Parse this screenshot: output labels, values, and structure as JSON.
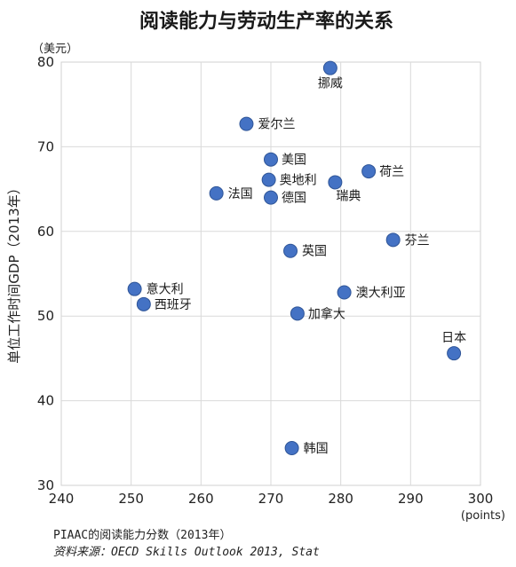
{
  "chart_data": {
    "type": "scatter",
    "title": "阅读能力与劳动生产率的关系",
    "ylabel": "单位工作时间GDP（2013年）",
    "y_unit": "（美元）",
    "x_unit": "(points)",
    "xlim": [
      240,
      300
    ],
    "ylim": [
      30,
      80
    ],
    "x_ticks": [
      240,
      250,
      260,
      270,
      280,
      290,
      300
    ],
    "y_ticks": [
      30,
      40,
      50,
      60,
      70,
      80
    ],
    "grid": true,
    "point_color": "#4472c4",
    "points": [
      {
        "label": "挪威",
        "x": 278.5,
        "y": 79.3
      },
      {
        "label": "爱尔兰",
        "x": 266.5,
        "y": 72.7
      },
      {
        "label": "美国",
        "x": 270.0,
        "y": 68.5
      },
      {
        "label": "荷兰",
        "x": 284.0,
        "y": 67.1
      },
      {
        "label": "奥地利",
        "x": 269.7,
        "y": 66.1
      },
      {
        "label": "瑞典",
        "x": 279.2,
        "y": 65.8
      },
      {
        "label": "法国",
        "x": 262.2,
        "y": 64.5
      },
      {
        "label": "德国",
        "x": 270.0,
        "y": 64.0
      },
      {
        "label": "芬兰",
        "x": 287.5,
        "y": 59.0
      },
      {
        "label": "英国",
        "x": 272.8,
        "y": 57.7
      },
      {
        "label": "意大利",
        "x": 250.5,
        "y": 53.2
      },
      {
        "label": "澳大利亚",
        "x": 280.5,
        "y": 52.8
      },
      {
        "label": "西班牙",
        "x": 251.8,
        "y": 51.4
      },
      {
        "label": "加拿大",
        "x": 273.8,
        "y": 50.3
      },
      {
        "label": "日本",
        "x": 296.2,
        "y": 45.6
      },
      {
        "label": "韩国",
        "x": 273.0,
        "y": 34.4
      }
    ]
  },
  "footer": {
    "xlabel": "PIAAC的阅读能力分数（2013年）",
    "source": "资料来源：OECD Skills Outlook 2013, Stat"
  }
}
